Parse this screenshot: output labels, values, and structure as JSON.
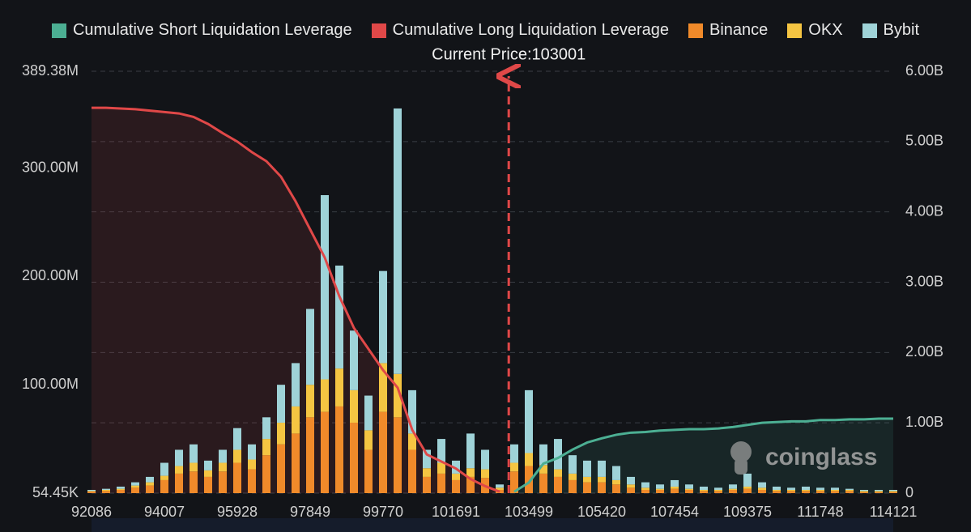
{
  "chart_data": {
    "type": "liquidation-map",
    "annotation": {
      "label": "Current Price:103001",
      "value": 103001
    },
    "watermark": "coinglass",
    "categories": [
      92086,
      null,
      null,
      null,
      null,
      94007,
      null,
      null,
      null,
      null,
      95928,
      null,
      null,
      null,
      null,
      97849,
      null,
      null,
      null,
      null,
      99770,
      null,
      null,
      null,
      null,
      101691,
      null,
      null,
      null,
      null,
      103499,
      null,
      null,
      null,
      null,
      105420,
      null,
      null,
      null,
      null,
      107454,
      null,
      null,
      null,
      null,
      109375,
      null,
      null,
      null,
      null,
      111748,
      null,
      null,
      null,
      null,
      114121
    ],
    "ylim": [
      0.05445,
      389.38
    ],
    "yticks": [
      {
        "value": 0.05445,
        "label": "54.45K"
      },
      {
        "value": 100,
        "label": "100.00M"
      },
      {
        "value": 200,
        "label": "200.00M"
      },
      {
        "value": 300,
        "label": "300.00M"
      },
      {
        "value": 389.38,
        "label": "389.38M"
      }
    ],
    "y2lim": [
      0,
      6
    ],
    "y2ticks": [
      0,
      {
        "value": 1,
        "label": "1.00B"
      },
      {
        "value": 2,
        "label": "2.00B"
      },
      {
        "value": 3,
        "label": "3.00B"
      },
      {
        "value": 4,
        "label": "4.00B"
      },
      {
        "value": 5,
        "label": "5.00B"
      },
      {
        "value": 6,
        "label": "6.00B"
      }
    ],
    "grid": true,
    "series": [
      {
        "name": "Cumulative Short Liquidation Leverage",
        "color": "#4caf93",
        "kind": "line",
        "axis": "y2",
        "values": [
          null,
          null,
          null,
          null,
          null,
          null,
          null,
          null,
          null,
          null,
          null,
          null,
          null,
          null,
          null,
          null,
          null,
          null,
          null,
          null,
          null,
          null,
          null,
          null,
          null,
          null,
          null,
          null,
          null,
          0.02,
          0.15,
          0.42,
          0.5,
          0.62,
          0.72,
          0.78,
          0.83,
          0.86,
          0.87,
          0.89,
          0.9,
          0.91,
          0.91,
          0.92,
          0.94,
          0.97,
          1.0,
          1.01,
          1.02,
          1.02,
          1.04,
          1.04,
          1.05,
          1.05,
          1.06,
          1.06
        ]
      },
      {
        "name": "Cumulative Long Liquidation Leverage",
        "color": "#e04848",
        "kind": "line",
        "axis": "y2",
        "values": [
          5.48,
          5.48,
          5.47,
          5.46,
          5.44,
          5.42,
          5.4,
          5.35,
          5.25,
          5.12,
          5.0,
          4.85,
          4.72,
          4.5,
          4.15,
          3.75,
          3.35,
          2.8,
          2.35,
          2.05,
          1.75,
          1.5,
          0.9,
          0.55,
          0.45,
          0.35,
          0.2,
          0.1,
          0.02,
          null,
          null,
          null,
          null,
          null,
          null,
          null,
          null,
          null,
          null,
          null,
          null,
          null,
          null,
          null,
          null,
          null,
          null,
          null,
          null,
          null,
          null,
          null,
          null,
          null,
          null,
          null
        ]
      },
      {
        "name": "Binance",
        "color": "#f08a2a",
        "kind": "bar",
        "values": [
          1.5,
          2,
          3,
          5,
          7,
          12,
          18,
          20,
          15,
          20,
          28,
          22,
          35,
          45,
          55,
          70,
          75,
          80,
          65,
          40,
          75,
          70,
          40,
          15,
          18,
          12,
          15,
          14,
          3,
          20,
          25,
          18,
          15,
          12,
          10,
          10,
          8,
          5,
          3,
          3,
          4,
          3,
          2,
          2,
          3,
          4,
          3,
          2,
          2,
          2,
          2,
          2,
          2,
          1,
          1,
          1
        ]
      },
      {
        "name": "OKX",
        "color": "#f5c542",
        "kind": "bar",
        "values": [
          0.5,
          1,
          1,
          2,
          3,
          4,
          7,
          8,
          6,
          8,
          12,
          9,
          15,
          20,
          25,
          30,
          30,
          35,
          30,
          18,
          45,
          40,
          15,
          8,
          10,
          6,
          8,
          8,
          2,
          8,
          12,
          8,
          7,
          6,
          5,
          5,
          4,
          3,
          2,
          1,
          2,
          1,
          1,
          1,
          1,
          2,
          2,
          1,
          1,
          1,
          1,
          1,
          1,
          1,
          1,
          1
        ]
      },
      {
        "name": "Bybit",
        "color": "#9fd3d8",
        "kind": "bar",
        "values": [
          1,
          1,
          2,
          3,
          5,
          12,
          15,
          17,
          9,
          12,
          20,
          14,
          20,
          35,
          40,
          70,
          170,
          95,
          55,
          32,
          85,
          245,
          40,
          17,
          22,
          12,
          32,
          18,
          3,
          17,
          58,
          19,
          28,
          17,
          15,
          15,
          13,
          7,
          5,
          4,
          6,
          4,
          3,
          2,
          4,
          12,
          5,
          3,
          2,
          3,
          2,
          2,
          1,
          1,
          1,
          1
        ]
      }
    ]
  }
}
